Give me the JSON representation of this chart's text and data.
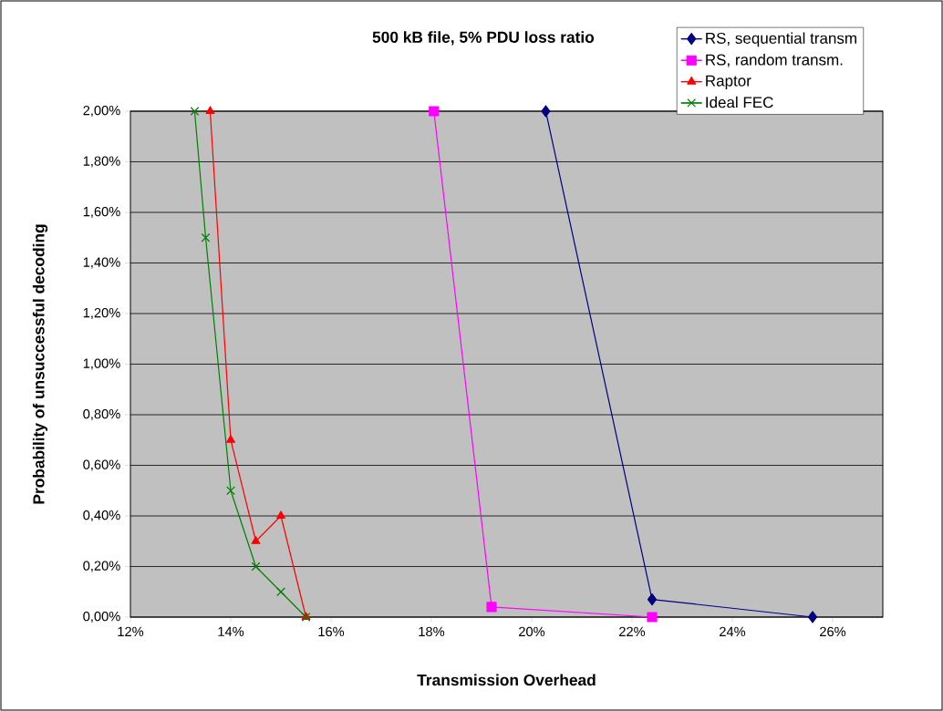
{
  "chart_data": {
    "type": "line",
    "title": "500 kB file, 5% PDU loss ratio",
    "xlabel": "Transmission Overhead",
    "ylabel": "Probability of unsuccessful decoding",
    "xlim": [
      12,
      27
    ],
    "ylim": [
      0,
      2
    ],
    "xticks": [
      {
        "value": 12,
        "label": "12%"
      },
      {
        "value": 14,
        "label": "14%"
      },
      {
        "value": 16,
        "label": "16%"
      },
      {
        "value": 18,
        "label": "18%"
      },
      {
        "value": 20,
        "label": "20%"
      },
      {
        "value": 22,
        "label": "22%"
      },
      {
        "value": 24,
        "label": "24%"
      },
      {
        "value": 26,
        "label": "26%"
      }
    ],
    "yticks": [
      {
        "value": 0,
        "label": "0,00%"
      },
      {
        "value": 0.2,
        "label": "0,20%"
      },
      {
        "value": 0.4,
        "label": "0,40%"
      },
      {
        "value": 0.6,
        "label": "0,60%"
      },
      {
        "value": 0.8,
        "label": "0,80%"
      },
      {
        "value": 1.0,
        "label": "1,00%"
      },
      {
        "value": 1.2,
        "label": "1,20%"
      },
      {
        "value": 1.4,
        "label": "1,40%"
      },
      {
        "value": 1.6,
        "label": "1,60%"
      },
      {
        "value": 1.8,
        "label": "1,80%"
      },
      {
        "value": 2.0,
        "label": "2,00%"
      }
    ],
    "grid": "y",
    "legend": "top right",
    "series": [
      {
        "name": "RS, sequential transm",
        "color": "#000080",
        "marker": "diamond",
        "x": [
          20.28,
          22.4,
          25.6
        ],
        "values": [
          2.0,
          0.07,
          0
        ]
      },
      {
        "name": "RS, random transm.",
        "color": "#ff00ff",
        "marker": "square",
        "x": [
          18.05,
          19.2,
          22.4
        ],
        "values": [
          2.0,
          0.04,
          0
        ]
      },
      {
        "name": "Raptor",
        "color": "#ff0000",
        "marker": "triangle",
        "x": [
          13.59,
          14,
          14.5,
          15,
          15.5
        ],
        "values": [
          2.0,
          0.7,
          0.3,
          0.4,
          0
        ]
      },
      {
        "name": "Ideal FEC",
        "color": "#008000",
        "marker": "cross",
        "x": [
          13.28,
          13.5,
          14,
          14.5,
          15,
          15.5
        ],
        "values": [
          2.0,
          1.5,
          0.5,
          0.2,
          0.1,
          0
        ]
      }
    ]
  }
}
